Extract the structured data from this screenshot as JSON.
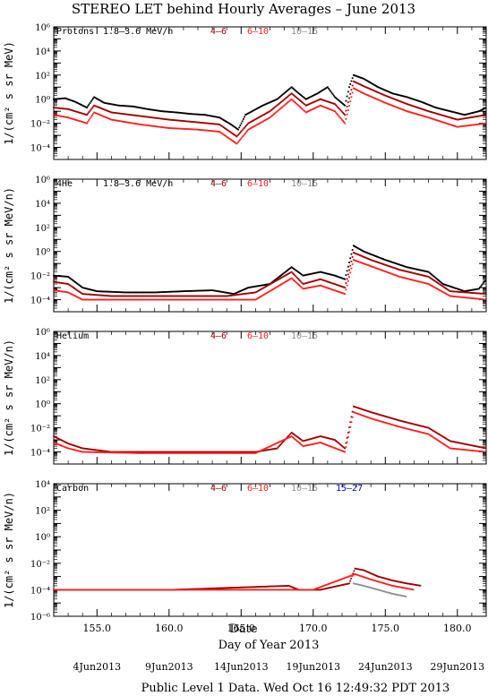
{
  "title": "STEREO LET behind Hourly Averages – June 2013",
  "xlabel": "Day of Year 2013",
  "date_label": "Date",
  "footer": "Public Level 1 Data. Wed Oct 16 12:49:32 PDT 2013",
  "colors": {
    "black": "#000000",
    "darkred": "#a00000",
    "red": "#ff2020",
    "gray": "#909090",
    "blue": "#0000cc"
  },
  "x_ticks": [
    "155.0",
    "160.0",
    "165.0",
    "170.0",
    "175.0",
    "180.0"
  ],
  "date_ticks": [
    "4Jun2013",
    "9Jun2013",
    "14Jun2013",
    "19Jun2013",
    "24Jun2013",
    "29Jun2013"
  ],
  "panels": [
    {
      "name": "Protons",
      "ylabel": "1/(cm² s sr MeV)",
      "legend": [
        "1.8–3.6 MeV/n",
        "4–6",
        "6–10",
        "10–15"
      ],
      "yticks": [
        "10⁶",
        "10⁴",
        "10²",
        "10⁰",
        "10⁻²",
        "10⁻⁴"
      ]
    },
    {
      "name": "4He",
      "ylabel": "1/(cm² s sr MeV/n)",
      "legend": [
        "1.8–3.6 MeV/n",
        "4–6",
        "6–10",
        "10–15"
      ],
      "yticks": [
        "10⁶",
        "10⁴",
        "10²",
        "10⁰",
        "10⁻²",
        "10⁻⁴"
      ]
    },
    {
      "name": "Helium",
      "ylabel": "1/(cm² s sr MeV/n)",
      "legend": [
        "",
        "4–6",
        "6–10",
        "10–15"
      ],
      "yticks": [
        "10⁶",
        "10⁴",
        "10²",
        "10⁰",
        "10⁻²",
        "10⁻⁴"
      ]
    },
    {
      "name": "Carbon",
      "ylabel": "1/(cm² s sr MeV/n)",
      "legend": [
        "",
        "4–6",
        "6–10",
        "10–15",
        "15–27"
      ],
      "yticks": [
        "10⁴",
        "10²",
        "10⁰",
        "10⁻²",
        "10⁻⁴",
        "10⁻⁶"
      ]
    }
  ],
  "chart_data": {
    "type": "scatter",
    "x_range": [
      152,
      182
    ],
    "y_scale": "log",
    "panels": [
      {
        "ylim": [
          1e-05,
          1000000.0
        ],
        "series": [
          {
            "name": "1.8–3.6 MeV/n",
            "color": "black",
            "points": [
              [
                152,
                1
              ],
              [
                152.8,
                1.2
              ],
              [
                153.5,
                0.6
              ],
              [
                154.3,
                0.2
              ],
              [
                154.8,
                1.5
              ],
              [
                155.5,
                0.5
              ],
              [
                156.5,
                0.3
              ],
              [
                157.5,
                0.25
              ],
              [
                158.5,
                0.15
              ],
              [
                159.5,
                0.1
              ],
              [
                160.5,
                0.08
              ],
              [
                161.5,
                0.06
              ],
              [
                162.5,
                0.05
              ],
              [
                163.5,
                0.03
              ],
              [
                164.3,
                0.008
              ],
              [
                164.8,
                0.003
              ],
              [
                165.3,
                0.05
              ],
              [
                166.5,
                0.3
              ],
              [
                167.5,
                1
              ],
              [
                168.5,
                10
              ],
              [
                169,
                3
              ],
              [
                169.5,
                1
              ],
              [
                170.3,
                3
              ],
              [
                171,
                10
              ],
              [
                171.5,
                1.5
              ],
              [
                172.2,
                0.3
              ],
              [
                172.5,
                10
              ],
              [
                172.8,
                100
              ],
              [
                173.5,
                50
              ],
              [
                174.5,
                10
              ],
              [
                175.5,
                3
              ],
              [
                176.5,
                1.5
              ],
              [
                177.5,
                0.6
              ],
              [
                178.5,
                0.2
              ],
              [
                179.5,
                0.1
              ],
              [
                180.5,
                0.05
              ],
              [
                181.5,
                0.1
              ],
              [
                182,
                0.2
              ]
            ]
          },
          {
            "name": "4–6",
            "color": "darkred",
            "points": [
              [
                152,
                0.2
              ],
              [
                153,
                0.15
              ],
              [
                154.3,
                0.05
              ],
              [
                154.8,
                0.3
              ],
              [
                156,
                0.08
              ],
              [
                158,
                0.04
              ],
              [
                160,
                0.02
              ],
              [
                162,
                0.012
              ],
              [
                163.5,
                0.008
              ],
              [
                164.7,
                0.0008
              ],
              [
                165.5,
                0.01
              ],
              [
                167,
                0.1
              ],
              [
                168.5,
                3
              ],
              [
                169.5,
                0.3
              ],
              [
                170.5,
                1
              ],
              [
                171.5,
                0.4
              ],
              [
                172.2,
                0.05
              ],
              [
                172.8,
                30
              ],
              [
                173.5,
                12
              ],
              [
                175,
                2
              ],
              [
                176.5,
                0.4
              ],
              [
                178,
                0.1
              ],
              [
                180,
                0.02
              ],
              [
                182,
                0.05
              ]
            ]
          },
          {
            "name": "6–10",
            "color": "red",
            "points": [
              [
                152,
                0.05
              ],
              [
                153,
                0.03
              ],
              [
                154.3,
                0.01
              ],
              [
                154.8,
                0.08
              ],
              [
                156,
                0.02
              ],
              [
                158,
                0.008
              ],
              [
                160,
                0.004
              ],
              [
                162,
                0.003
              ],
              [
                163.5,
                0.002
              ],
              [
                164.7,
                0.0002
              ],
              [
                165.5,
                0.003
              ],
              [
                167,
                0.03
              ],
              [
                168.5,
                1
              ],
              [
                169.5,
                0.08
              ],
              [
                170.5,
                0.3
              ],
              [
                171.5,
                0.1
              ],
              [
                172.2,
                0.01
              ],
              [
                172.8,
                8
              ],
              [
                173.5,
                3
              ],
              [
                175,
                0.5
              ],
              [
                176.5,
                0.1
              ],
              [
                178,
                0.03
              ],
              [
                180,
                0.005
              ],
              [
                182,
                0.01
              ]
            ]
          }
        ]
      },
      {
        "ylim": [
          1e-05,
          1000000.0
        ],
        "series": [
          {
            "name": "1.8–3.6 MeV/n",
            "color": "black",
            "points": [
              [
                152,
                0.01
              ],
              [
                153,
                0.008
              ],
              [
                154,
                0.001
              ],
              [
                155,
                0.0005
              ],
              [
                157,
                0.0004
              ],
              [
                159,
                0.0004
              ],
              [
                161,
                0.0005
              ],
              [
                163,
                0.0006
              ],
              [
                164.5,
                0.0003
              ],
              [
                165.5,
                0.001
              ],
              [
                167,
                0.002
              ],
              [
                168.5,
                0.05
              ],
              [
                169.3,
                0.01
              ],
              [
                170.5,
                0.02
              ],
              [
                171.5,
                0.01
              ],
              [
                172.2,
                0.005
              ],
              [
                172.8,
                3
              ],
              [
                173.5,
                1
              ],
              [
                175,
                0.2
              ],
              [
                176.5,
                0.05
              ],
              [
                178,
                0.02
              ],
              [
                179,
                0.002
              ],
              [
                180.5,
                0.0005
              ],
              [
                181.5,
                0.0008
              ],
              [
                182,
                0.005
              ]
            ]
          },
          {
            "name": "4–6",
            "color": "darkred",
            "points": [
              [
                152,
                0.003
              ],
              [
                153,
                0.002
              ],
              [
                154,
                0.0003
              ],
              [
                156,
                0.0002
              ],
              [
                160,
                0.0002
              ],
              [
                164,
                0.0002
              ],
              [
                166,
                0.0004
              ],
              [
                168.5,
                0.02
              ],
              [
                169.3,
                0.002
              ],
              [
                170.5,
                0.005
              ],
              [
                172.2,
                0.001
              ],
              [
                172.8,
                0.8
              ],
              [
                174,
                0.2
              ],
              [
                176,
                0.03
              ],
              [
                178,
                0.008
              ],
              [
                179.5,
                0.0005
              ],
              [
                182,
                0.0003
              ]
            ]
          },
          {
            "name": "6–10",
            "color": "red",
            "points": [
              [
                152,
                0.0006
              ],
              [
                153,
                0.0004
              ],
              [
                154,
                0.0001
              ],
              [
                158,
                0.0001
              ],
              [
                164,
                0.0001
              ],
              [
                166,
                0.0001
              ],
              [
                168.5,
                0.006
              ],
              [
                169.3,
                0.0008
              ],
              [
                170.5,
                0.0015
              ],
              [
                172.2,
                0.0003
              ],
              [
                172.8,
                0.2
              ],
              [
                174,
                0.06
              ],
              [
                176,
                0.008
              ],
              [
                178,
                0.002
              ],
              [
                179.5,
                0.0002
              ],
              [
                182,
                0.0001
              ]
            ]
          }
        ]
      },
      {
        "ylim": [
          1e-05,
          1000000.0
        ],
        "series": [
          {
            "name": "4–6",
            "color": "darkred",
            "points": [
              [
                152,
                0.002
              ],
              [
                153,
                0.0005
              ],
              [
                154,
                0.0002
              ],
              [
                156,
                0.0001
              ],
              [
                160,
                0.0001
              ],
              [
                164,
                0.0001
              ],
              [
                166,
                0.0001
              ],
              [
                167.5,
                0.0002
              ],
              [
                168.5,
                0.004
              ],
              [
                169.3,
                0.0008
              ],
              [
                170.5,
                0.002
              ],
              [
                171.5,
                0.001
              ],
              [
                172.2,
                0.0002
              ],
              [
                172.8,
                0.6
              ],
              [
                174,
                0.2
              ],
              [
                176,
                0.04
              ],
              [
                178,
                0.01
              ],
              [
                179.5,
                0.0008
              ],
              [
                182,
                0.0002
              ]
            ]
          },
          {
            "name": "6–10",
            "color": "red",
            "points": [
              [
                152,
                0.0006
              ],
              [
                153,
                0.0002
              ],
              [
                154,
                0.0001
              ],
              [
                158,
                8e-05
              ],
              [
                164,
                8e-05
              ],
              [
                166,
                8e-05
              ],
              [
                168.5,
                0.002
              ],
              [
                169.3,
                0.0003
              ],
              [
                170.5,
                0.0006
              ],
              [
                172.2,
                0.0001
              ],
              [
                172.8,
                0.2
              ],
              [
                174,
                0.06
              ],
              [
                176,
                0.012
              ],
              [
                178,
                0.003
              ],
              [
                179.5,
                0.0002
              ],
              [
                182,
                0.0001
              ]
            ]
          }
        ]
      },
      {
        "ylim": [
          1e-06,
          10000.0
        ],
        "series": [
          {
            "name": "4–6",
            "color": "darkred",
            "points": [
              [
                152,
                0.0001
              ],
              [
                153.5,
                0.0001
              ],
              [
                155.5,
                0.0001
              ],
              [
                160.3,
                0.0001
              ],
              [
                168.3,
                0.0002
              ],
              [
                169,
                0.0001
              ],
              [
                170.5,
                0.0001
              ],
              [
                172.5,
                0.0003
              ],
              [
                172.9,
                0.004
              ],
              [
                173.5,
                0.003
              ],
              [
                174.5,
                0.001
              ],
              [
                175.5,
                0.0005
              ],
              [
                176.5,
                0.0003
              ],
              [
                177.5,
                0.0002
              ]
            ]
          },
          {
            "name": "6–10",
            "color": "red",
            "points": [
              [
                152,
                0.0001
              ],
              [
                154.5,
                0.0001
              ],
              [
                166,
                0.0001
              ],
              [
                168.5,
                0.0001
              ],
              [
                170,
                0.0001
              ],
              [
                172.9,
                0.0015
              ],
              [
                174,
                0.0006
              ],
              [
                175.5,
                0.0002
              ],
              [
                177,
                0.0001
              ]
            ]
          },
          {
            "name": "10–15",
            "color": "gray",
            "points": [
              [
                172.8,
                0.0003
              ],
              [
                173.5,
                0.0002
              ],
              [
                174.5,
                0.0001
              ],
              [
                175.5,
                5e-05
              ],
              [
                176.5,
                3e-05
              ]
            ]
          }
        ]
      }
    ]
  }
}
